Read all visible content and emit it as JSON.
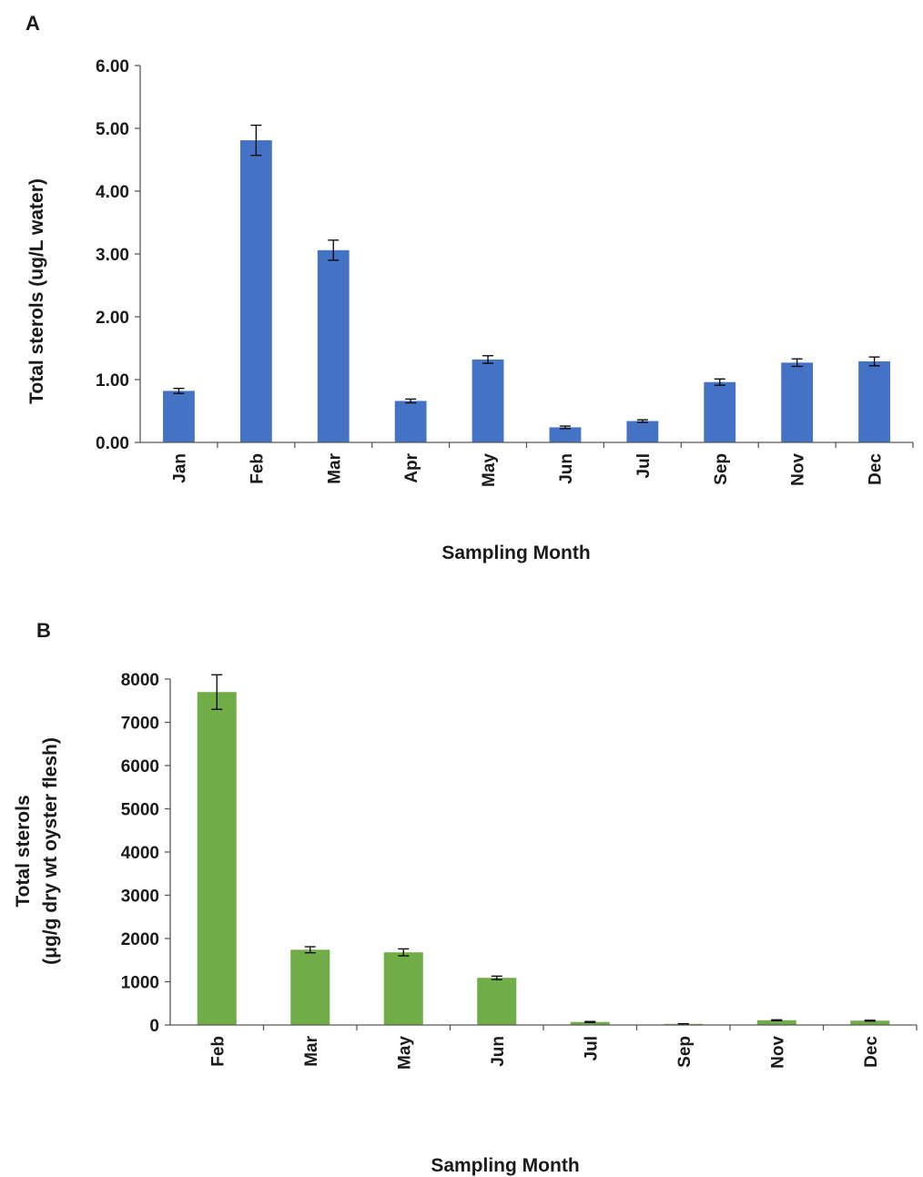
{
  "chart_data": [
    {
      "type": "bar",
      "panel_label": "A",
      "categories": [
        "Jan",
        "Feb",
        "Mar",
        "Apr",
        "May",
        "Jun",
        "Jul",
        "Sep",
        "Nov",
        "Dec"
      ],
      "values": [
        0.82,
        4.81,
        3.06,
        0.66,
        1.32,
        0.24,
        0.34,
        0.96,
        1.27,
        1.29
      ],
      "errors": [
        0.04,
        0.24,
        0.16,
        0.03,
        0.06,
        0.02,
        0.02,
        0.05,
        0.06,
        0.07
      ],
      "yticks": [
        "0.00",
        "1.00",
        "2.00",
        "3.00",
        "4.00",
        "5.00",
        "6.00"
      ],
      "ylim": [
        0,
        6
      ],
      "xlabel": "Sampling Month",
      "ylabel": "Total sterols (ug/L water)",
      "color": "#4472c4",
      "grid": false,
      "legend": "none"
    },
    {
      "type": "bar",
      "panel_label": "B",
      "categories": [
        "Feb",
        "Mar",
        "May",
        "Jun",
        "Jul",
        "Sep",
        "Nov",
        "Dec"
      ],
      "values": [
        7700,
        1740,
        1680,
        1090,
        70,
        25,
        110,
        100
      ],
      "errors": [
        400,
        70,
        80,
        40,
        10,
        5,
        10,
        10
      ],
      "yticks": [
        "0",
        "1000",
        "2000",
        "3000",
        "4000",
        "5000",
        "6000",
        "7000",
        "8000"
      ],
      "ylim": [
        0,
        8000
      ],
      "xlabel": "Sampling Month",
      "ylabel_lines": [
        "Total sterols",
        "(μg/g dry wt oyster flesh)"
      ],
      "color": "#70ad47",
      "grid": false,
      "legend": "none"
    }
  ]
}
